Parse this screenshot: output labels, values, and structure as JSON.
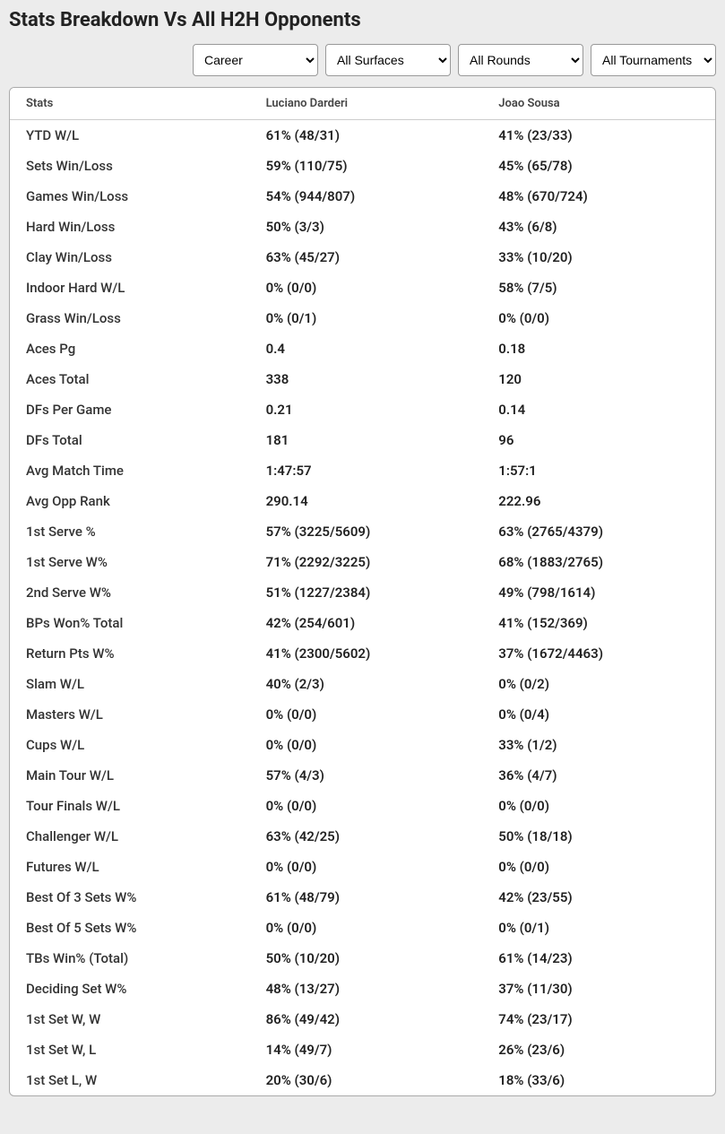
{
  "title": "Stats Breakdown Vs All H2H Opponents",
  "filters": {
    "period": "Career",
    "surface": "All Surfaces",
    "round": "All Rounds",
    "tournament": "All Tournaments"
  },
  "headers": {
    "stats": "Stats",
    "player1": "Luciano Darderi",
    "player2": "Joao Sousa"
  },
  "rows": [
    {
      "stat": "YTD W/L",
      "p1": "61% (48/31)",
      "p2": "41% (23/33)"
    },
    {
      "stat": "Sets Win/Loss",
      "p1": "59% (110/75)",
      "p2": "45% (65/78)"
    },
    {
      "stat": "Games Win/Loss",
      "p1": "54% (944/807)",
      "p2": "48% (670/724)"
    },
    {
      "stat": "Hard Win/Loss",
      "p1": "50% (3/3)",
      "p2": "43% (6/8)"
    },
    {
      "stat": "Clay Win/Loss",
      "p1": "63% (45/27)",
      "p2": "33% (10/20)"
    },
    {
      "stat": "Indoor Hard W/L",
      "p1": "0% (0/0)",
      "p2": "58% (7/5)"
    },
    {
      "stat": "Grass Win/Loss",
      "p1": "0% (0/1)",
      "p2": "0% (0/0)"
    },
    {
      "stat": "Aces Pg",
      "p1": "0.4",
      "p2": "0.18"
    },
    {
      "stat": "Aces Total",
      "p1": "338",
      "p2": "120"
    },
    {
      "stat": "DFs Per Game",
      "p1": "0.21",
      "p2": "0.14"
    },
    {
      "stat": "DFs Total",
      "p1": "181",
      "p2": "96"
    },
    {
      "stat": "Avg Match Time",
      "p1": "1:47:57",
      "p2": "1:57:1"
    },
    {
      "stat": "Avg Opp Rank",
      "p1": "290.14",
      "p2": "222.96"
    },
    {
      "stat": "1st Serve %",
      "p1": "57% (3225/5609)",
      "p2": "63% (2765/4379)"
    },
    {
      "stat": "1st Serve W%",
      "p1": "71% (2292/3225)",
      "p2": "68% (1883/2765)"
    },
    {
      "stat": "2nd Serve W%",
      "p1": "51% (1227/2384)",
      "p2": "49% (798/1614)"
    },
    {
      "stat": "BPs Won% Total",
      "p1": "42% (254/601)",
      "p2": "41% (152/369)"
    },
    {
      "stat": "Return Pts W%",
      "p1": "41% (2300/5602)",
      "p2": "37% (1672/4463)"
    },
    {
      "stat": "Slam W/L",
      "p1": "40% (2/3)",
      "p2": "0% (0/2)"
    },
    {
      "stat": "Masters W/L",
      "p1": "0% (0/0)",
      "p2": "0% (0/4)"
    },
    {
      "stat": "Cups W/L",
      "p1": "0% (0/0)",
      "p2": "33% (1/2)"
    },
    {
      "stat": "Main Tour W/L",
      "p1": "57% (4/3)",
      "p2": "36% (4/7)"
    },
    {
      "stat": "Tour Finals W/L",
      "p1": "0% (0/0)",
      "p2": "0% (0/0)"
    },
    {
      "stat": "Challenger W/L",
      "p1": "63% (42/25)",
      "p2": "50% (18/18)"
    },
    {
      "stat": "Futures W/L",
      "p1": "0% (0/0)",
      "p2": "0% (0/0)"
    },
    {
      "stat": "Best Of 3 Sets W%",
      "p1": "61% (48/79)",
      "p2": "42% (23/55)"
    },
    {
      "stat": "Best Of 5 Sets W%",
      "p1": "0% (0/0)",
      "p2": "0% (0/1)"
    },
    {
      "stat": "TBs Win% (Total)",
      "p1": "50% (10/20)",
      "p2": "61% (14/23)"
    },
    {
      "stat": "Deciding Set W%",
      "p1": "48% (13/27)",
      "p2": "37% (11/30)"
    },
    {
      "stat": "1st Set W, W",
      "p1": "86% (49/42)",
      "p2": "74% (23/17)"
    },
    {
      "stat": "1st Set W, L",
      "p1": "14% (49/7)",
      "p2": "26% (23/6)"
    },
    {
      "stat": "1st Set L, W",
      "p1": "20% (30/6)",
      "p2": "18% (33/6)"
    }
  ]
}
